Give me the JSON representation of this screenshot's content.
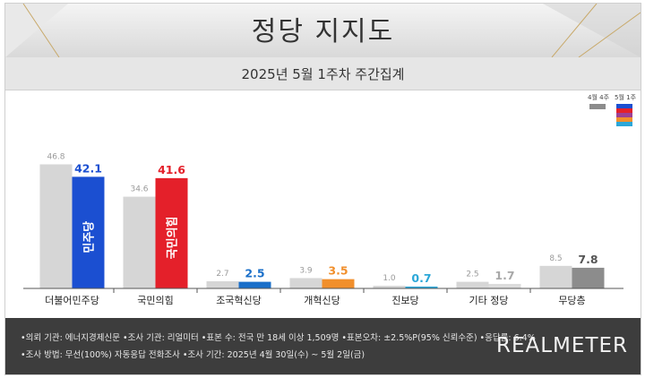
{
  "header": {
    "title": "정당 지지도",
    "subtitle": "2025년 5월 1주차 주간집계"
  },
  "legend": {
    "prev_label": "4월 4주",
    "curr_label": "5월 1주"
  },
  "colors": {
    "prev": "#d6d6d6",
    "prev_legend": "#8c8c8c",
    "curr_swatches": [
      "#1b4fd1",
      "#e4202a",
      "#9e3f93",
      "#f18f2c",
      "#2ba7d8"
    ]
  },
  "chart_data": {
    "type": "bar",
    "categories": [
      "더불어민주당",
      "국민의힘",
      "조국혁신당",
      "개혁신당",
      "진보당",
      "기타 정당",
      "무당층"
    ],
    "series": [
      {
        "name": "4월 4주",
        "values": [
          46.8,
          34.6,
          2.7,
          3.9,
          1.0,
          2.5,
          8.5
        ]
      },
      {
        "name": "5월 1주",
        "values": [
          42.1,
          41.6,
          2.5,
          3.5,
          0.7,
          1.7,
          7.8
        ]
      }
    ],
    "curr_colors": [
      "#1b4fd1",
      "#e4202a",
      "#1a6fc9",
      "#f18f2c",
      "#2ba7d8",
      "#dcdcdc",
      "#8c8c8c"
    ],
    "curr_label_colors": [
      "#1b4fd1",
      "#e4202a",
      "#1a6fc9",
      "#f18f2c",
      "#2ba7d8",
      "#a8a8a8",
      "#555555"
    ],
    "bar_logos": [
      "민주당",
      "국민의힘"
    ],
    "ylim": [
      0,
      50
    ],
    "title": "",
    "xlabel": "",
    "ylabel": ""
  },
  "footer": {
    "line1": "•의뢰 기관: 에너지경제신문  •조사 기관: 리얼미터  •표본 수: 전국 만 18세 이상 1,509명  •표본오차: ±2.5%P(95% 신뢰수준)  •응답률: 6.4%",
    "line2": "•조사 방법: 무선(100%) 자동응답 전화조사  •조사 기간: 2025년 4월 30일(수) ~ 5월 2일(금)",
    "logo": "REALMETER"
  }
}
